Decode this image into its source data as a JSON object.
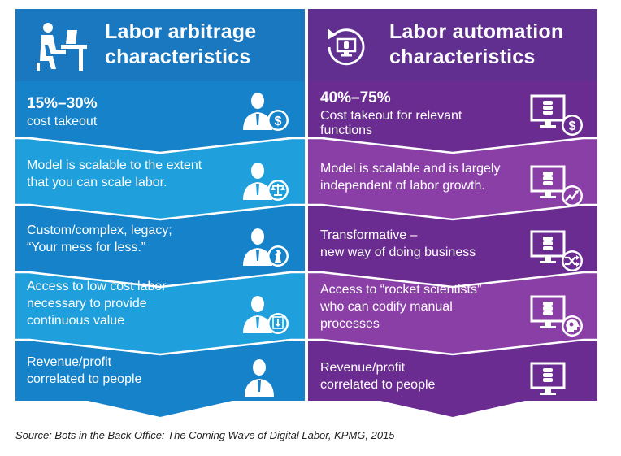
{
  "headers": {
    "left": {
      "line1": "Labor arbitrage",
      "line2": "characteristics"
    },
    "right": {
      "line1": "Labor automation",
      "line2": "characteristics"
    }
  },
  "left_rows": [
    {
      "highlight": "15%–30%",
      "lines": [
        "cost takeout"
      ],
      "icon": "person-dollar-icon"
    },
    {
      "lines": [
        "Model is scalable to the extent",
        "that you can scale labor."
      ],
      "icon": "person-scale-icon"
    },
    {
      "lines": [
        "Custom/complex, legacy;",
        "“Your mess for less.”"
      ],
      "icon": "person-chess-icon"
    },
    {
      "lines": [
        "Access to low cost labor",
        "necessary to provide",
        "continuous value"
      ],
      "icon": "person-download-icon"
    },
    {
      "lines": [
        "Revenue/profit",
        "correlated to people"
      ],
      "icon": "person-icon"
    }
  ],
  "right_rows": [
    {
      "highlight": "40%–75%",
      "lines": [
        "Cost takeout for relevant",
        "functions"
      ],
      "icon": "monitor-dollar-icon"
    },
    {
      "lines": [
        "Model is scalable and is largely",
        "independent of labor growth."
      ],
      "icon": "monitor-growth-icon"
    },
    {
      "lines": [
        "Transformative –",
        "new way of doing business"
      ],
      "icon": "monitor-shuffle-icon"
    },
    {
      "lines": [
        "Access to “rocket scientists”",
        "who can codify manual",
        "processes"
      ],
      "icon": "monitor-brain-icon"
    },
    {
      "lines": [
        "Revenue/profit",
        "correlated to people"
      ],
      "icon": "monitor-icon"
    }
  ],
  "source": "Source: Bots in the Back Office: The Coming Wave of Digital Labor, KPMG, 2015",
  "colors": {
    "left_header": "#1978c0",
    "left_band_dark": "#1582c9",
    "left_band_light": "#1fa0dc",
    "right_header": "#612f8f",
    "right_band_dark": "#6a2c90",
    "right_band_light": "#8a3fa6"
  }
}
